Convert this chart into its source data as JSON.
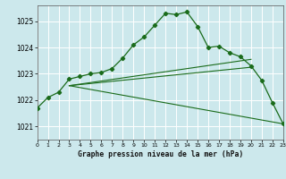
{
  "title": "Graphe pression niveau de la mer (hPa)",
  "bg_color": "#cce8ec",
  "line_color": "#1a6b1a",
  "grid_color": "#ffffff",
  "x_min": 0,
  "x_max": 23,
  "y_min": 1020.5,
  "y_max": 1025.6,
  "yticks": [
    1021,
    1022,
    1023,
    1024,
    1025
  ],
  "xtick_labels": [
    "0",
    "1",
    "2",
    "3",
    "4",
    "5",
    "6",
    "7",
    "8",
    "9",
    "10",
    "11",
    "12",
    "13",
    "14",
    "15",
    "16",
    "17",
    "18",
    "19",
    "20",
    "21",
    "22",
    "23"
  ],
  "series1_x": [
    0,
    1,
    2,
    3,
    4,
    5,
    6,
    7,
    8,
    9,
    10,
    11,
    12,
    13,
    14,
    15,
    16,
    17,
    18,
    19,
    20,
    21,
    22,
    23
  ],
  "series1_y": [
    1021.7,
    1022.1,
    1022.3,
    1022.8,
    1022.9,
    1023.0,
    1023.05,
    1023.2,
    1023.6,
    1024.1,
    1024.4,
    1024.85,
    1025.3,
    1025.25,
    1025.35,
    1024.8,
    1024.0,
    1024.05,
    1023.8,
    1023.65,
    1023.3,
    1022.75,
    1021.9,
    1021.1
  ],
  "fan_lines": [
    {
      "x": [
        3,
        20
      ],
      "y": [
        1022.55,
        1023.55
      ]
    },
    {
      "x": [
        3,
        20
      ],
      "y": [
        1022.55,
        1023.25
      ]
    },
    {
      "x": [
        3,
        23
      ],
      "y": [
        1022.55,
        1021.1
      ]
    }
  ]
}
